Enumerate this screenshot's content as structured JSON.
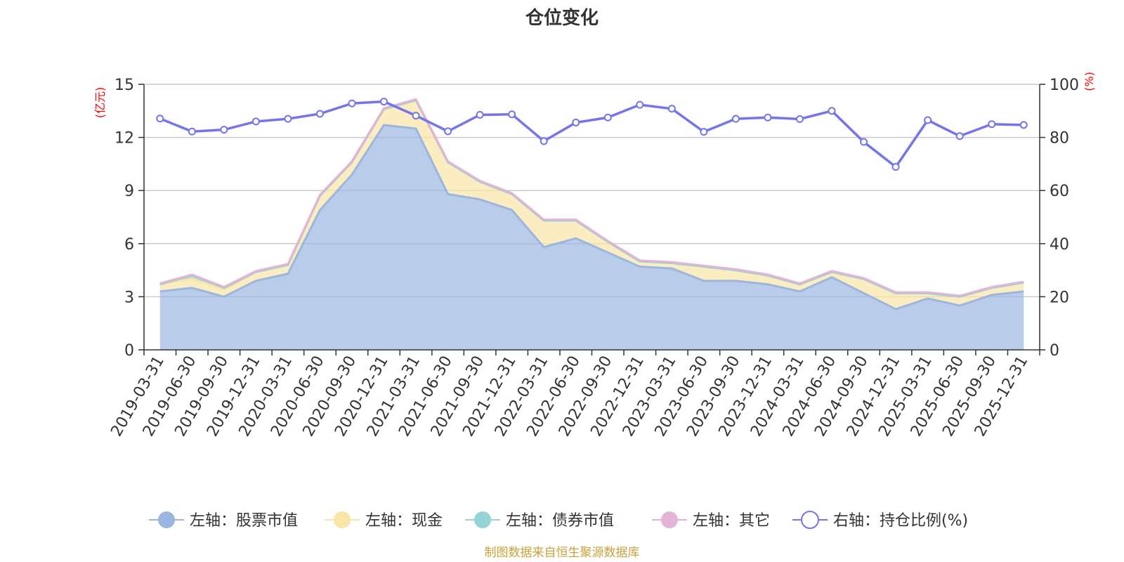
{
  "chart_data": {
    "type": "area",
    "title": "仓位变化",
    "left_unit": "(亿元)",
    "right_unit": "(%)",
    "left_ylim": [
      0,
      15
    ],
    "left_ticks": [
      "0",
      "3",
      "6",
      "9",
      "12",
      "15"
    ],
    "right_ylim": [
      0,
      100
    ],
    "right_ticks": [
      "0",
      "20",
      "40",
      "60",
      "80",
      "100"
    ],
    "x": [
      "2019-03-31",
      "2019-06-30",
      "2019-09-30",
      "2019-12-31",
      "2020-03-31",
      "2020-06-30",
      "2020-09-30",
      "2020-12-31",
      "2021-03-31",
      "2021-06-30",
      "2021-09-30",
      "2021-12-31",
      "2022-03-31",
      "2022-06-30",
      "2022-09-30",
      "2022-12-31",
      "2023-03-31",
      "2023-06-30",
      "2023-09-30",
      "2023-12-31",
      "2024-03-31",
      "2024-06-30",
      "2024-09-30",
      "2024-12-31",
      "2025-03-31",
      "2025-06-30",
      "2025-09-30",
      "2025-12-31"
    ],
    "series": [
      {
        "name": "左轴：股票市值",
        "axis": "left",
        "color": "#9bb6e0",
        "values": [
          3.3,
          3.5,
          3.0,
          3.9,
          4.3,
          7.9,
          9.9,
          12.7,
          12.5,
          8.8,
          8.5,
          7.9,
          5.8,
          6.3,
          5.5,
          4.7,
          4.6,
          3.9,
          3.9,
          3.7,
          3.3,
          4.1,
          3.2,
          2.3,
          2.9,
          2.5,
          3.1,
          3.3
        ]
      },
      {
        "name": "左轴：现金",
        "axis": "left",
        "color": "#f9e6a4",
        "values": [
          0.4,
          0.5,
          0.4,
          0.5,
          0.5,
          0.8,
          0.7,
          0.9,
          1.6,
          1.8,
          1.0,
          0.9,
          1.5,
          1.0,
          0.6,
          0.3,
          0.3,
          0.8,
          0.6,
          0.5,
          0.4,
          0.3,
          0.8,
          0.9,
          0.3,
          0.5,
          0.4,
          0.5
        ]
      },
      {
        "name": "左轴：债券市值",
        "axis": "left",
        "color": "#93d4d4",
        "values": [
          0,
          0.2,
          0.1,
          0,
          0,
          0,
          0,
          0,
          0,
          0,
          0,
          0,
          0,
          0,
          0,
          0,
          0,
          0,
          0,
          0,
          0,
          0,
          0,
          0,
          0,
          0,
          0,
          0
        ]
      },
      {
        "name": "左轴：其它",
        "axis": "left",
        "color": "#e4b3d8",
        "values": [
          0.05,
          0.05,
          0.05,
          0.05,
          0.05,
          0.05,
          0.05,
          0.05,
          0.05,
          0.05,
          0.05,
          0.05,
          0.05,
          0.05,
          0.05,
          0.05,
          0.05,
          0.05,
          0.05,
          0.05,
          0.05,
          0.05,
          0.05,
          0.05,
          0.05,
          0.05,
          0.05,
          0.05
        ]
      },
      {
        "name": "右轴：持仓比例(%)",
        "axis": "right",
        "color": "#7474ee",
        "values": [
          87.1,
          82.2,
          82.9,
          86.0,
          87.0,
          88.9,
          92.8,
          93.5,
          88.2,
          82.3,
          88.5,
          88.7,
          78.6,
          85.6,
          87.5,
          92.3,
          90.8,
          82.1,
          87.0,
          87.5,
          86.9,
          90.0,
          78.3,
          68.9,
          86.5,
          80.5,
          85.0,
          84.7
        ]
      }
    ],
    "legend_position": "bottom"
  },
  "footer": {
    "source": "制图数据来自恒生聚源数据库"
  }
}
